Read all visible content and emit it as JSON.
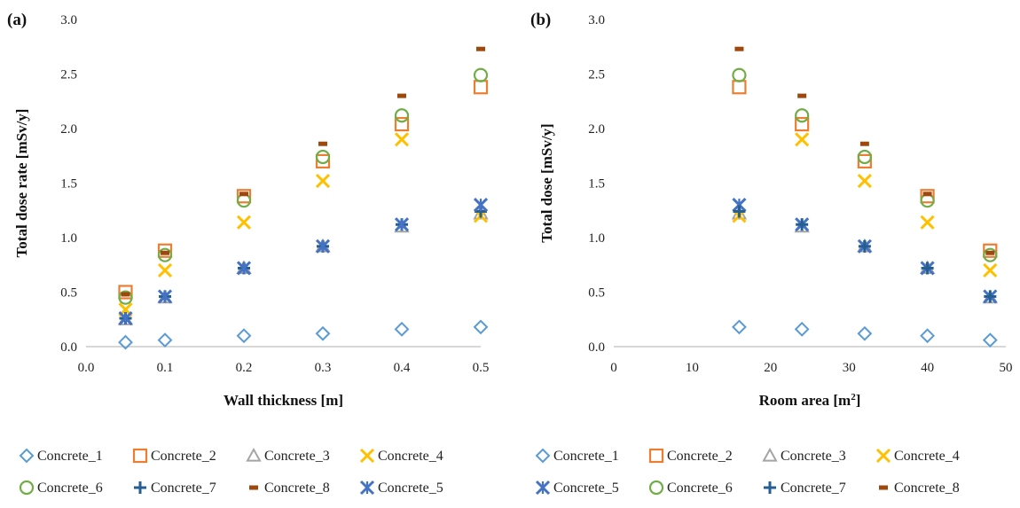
{
  "colors": {
    "Concrete_1": "#5b9bd5",
    "Concrete_2": "#ed7d31",
    "Concrete_3": "#a5a5a5",
    "Concrete_4": "#ffc000",
    "Concrete_5": "#4472c4",
    "Concrete_6": "#70ad47",
    "Concrete_7": "#255e91",
    "Concrete_8": "#9e480e"
  },
  "chart_data": [
    {
      "type": "scatter",
      "panel_label": "(a)",
      "xlabel": "Wall thickness [m]",
      "ylabel": "Total dose rate [mSv/y]",
      "xlim": [
        0.0,
        0.5
      ],
      "ylim": [
        0.0,
        3.0
      ],
      "xticks": [
        "0.0",
        "0.1",
        "0.2",
        "0.3",
        "0.4",
        "0.5"
      ],
      "yticks": [
        "0.0",
        "0.5",
        "1.0",
        "1.5",
        "2.0",
        "2.5",
        "3.0"
      ],
      "grid": false,
      "legend_order": [
        "Concrete_1",
        "Concrete_2",
        "Concrete_3",
        "Concrete_4",
        "Concrete_6",
        "Concrete_7",
        "Concrete_8",
        "Concrete_5"
      ],
      "x": [
        0.05,
        0.1,
        0.2,
        0.3,
        0.4,
        0.5
      ],
      "series": [
        {
          "name": "Concrete_1",
          "marker": "diamond",
          "values": [
            0.04,
            0.06,
            0.1,
            0.12,
            0.16,
            0.18
          ]
        },
        {
          "name": "Concrete_2",
          "marker": "square",
          "values": [
            0.5,
            0.88,
            1.38,
            1.7,
            2.04,
            2.38
          ]
        },
        {
          "name": "Concrete_3",
          "marker": "triangle",
          "values": [
            0.25,
            0.45,
            0.72,
            0.92,
            1.1,
            1.22
          ]
        },
        {
          "name": "Concrete_4",
          "marker": "x",
          "values": [
            0.34,
            0.7,
            1.14,
            1.52,
            1.9,
            1.2
          ]
        },
        {
          "name": "Concrete_6",
          "marker": "circle",
          "values": [
            0.45,
            0.84,
            1.34,
            1.74,
            2.12,
            2.49
          ]
        },
        {
          "name": "Concrete_7",
          "marker": "plus",
          "values": [
            0.26,
            0.46,
            0.72,
            0.92,
            1.12,
            1.24
          ]
        },
        {
          "name": "Concrete_8",
          "marker": "dash",
          "values": [
            0.48,
            0.86,
            1.4,
            1.86,
            2.3,
            2.73
          ]
        },
        {
          "name": "Concrete_5",
          "marker": "star",
          "values": [
            0.26,
            0.46,
            0.72,
            0.92,
            1.12,
            1.3
          ]
        }
      ]
    },
    {
      "type": "scatter",
      "panel_label": "(b)",
      "xlabel": "Room area [m",
      "xlabel_sup": "2",
      "xlabel_end": "]",
      "ylabel": "Total dose [mSv/y]",
      "xlim": [
        0,
        50
      ],
      "ylim": [
        0.0,
        3.0
      ],
      "xticks": [
        "0",
        "10",
        "20",
        "30",
        "40",
        "50"
      ],
      "yticks": [
        "0.0",
        "0.5",
        "1.0",
        "1.5",
        "2.0",
        "2.5",
        "3.0"
      ],
      "grid": false,
      "legend_order": [
        "Concrete_1",
        "Concrete_2",
        "Concrete_3",
        "Concrete_4",
        "Concrete_5",
        "Concrete_6",
        "Concrete_7",
        "Concrete_8"
      ],
      "x": [
        16,
        24,
        32,
        40,
        48
      ],
      "series": [
        {
          "name": "Concrete_1",
          "marker": "diamond",
          "values": [
            0.18,
            0.16,
            0.12,
            0.1,
            0.06
          ]
        },
        {
          "name": "Concrete_2",
          "marker": "square",
          "values": [
            2.38,
            2.04,
            1.7,
            1.38,
            0.88
          ]
        },
        {
          "name": "Concrete_3",
          "marker": "triangle",
          "values": [
            1.22,
            1.1,
            0.92,
            0.72,
            0.45
          ]
        },
        {
          "name": "Concrete_4",
          "marker": "x",
          "values": [
            1.2,
            1.9,
            1.52,
            1.14,
            0.7
          ]
        },
        {
          "name": "Concrete_5",
          "marker": "star",
          "values": [
            1.3,
            1.12,
            0.92,
            0.72,
            0.46
          ]
        },
        {
          "name": "Concrete_6",
          "marker": "circle",
          "values": [
            2.49,
            2.12,
            1.74,
            1.34,
            0.84
          ]
        },
        {
          "name": "Concrete_7",
          "marker": "plus",
          "values": [
            1.24,
            1.12,
            0.92,
            0.72,
            0.46
          ]
        },
        {
          "name": "Concrete_8",
          "marker": "dash",
          "values": [
            2.73,
            2.3,
            1.86,
            1.4,
            0.86
          ]
        }
      ]
    }
  ]
}
